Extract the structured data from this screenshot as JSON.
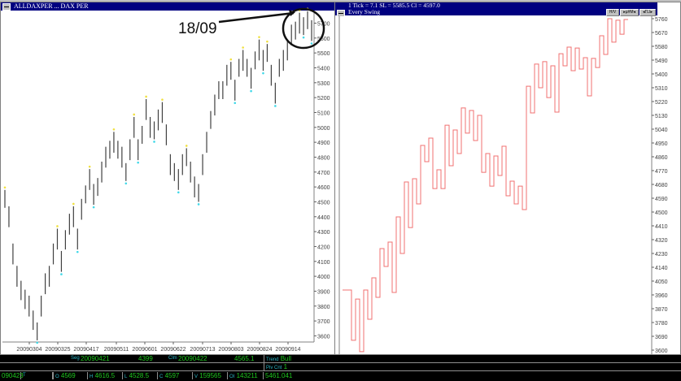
{
  "left_window": {
    "title": "ALLDAXPER ... DAX PER",
    "annotation": "18/09"
  },
  "right_window": {
    "info": "1 Tick = 7.1     SL = 5585.5     Cl = 4597.0",
    "subtitle": "Every Swing",
    "buttons": [
      "H/V",
      "▸µ#M◂",
      "◂ΓLI▸"
    ]
  },
  "chart_data": [
    {
      "type": "ohlc-bar",
      "ylim": [
        3550,
        5800
      ],
      "yticks": [
        3600,
        3700,
        3800,
        3900,
        4000,
        4100,
        4200,
        4300,
        4400,
        4500,
        4600,
        4700,
        4800,
        4900,
        5000,
        5100,
        5200,
        5300,
        5400,
        5500,
        5600,
        5700
      ],
      "xticks": [
        "20090304",
        "20090325",
        "20090417",
        "20090511",
        "20090601",
        "20090622",
        "20090713",
        "20090803",
        "20090824",
        "20090914"
      ],
      "grid": false,
      "colors": {
        "bar": "#404040",
        "swing_high": "#f0e040",
        "swing_low": "#40d8e8"
      },
      "bars_high_low": [
        [
          4580,
          4460
        ],
        [
          4470,
          4330
        ],
        [
          4220,
          4080
        ],
        [
          4070,
          3930
        ],
        [
          3970,
          3840
        ],
        [
          3910,
          3780
        ],
        [
          3870,
          3730
        ],
        [
          3770,
          3640
        ],
        [
          3690,
          3570
        ],
        [
          3870,
          3730
        ],
        [
          4020,
          3880
        ],
        [
          4070,
          3930
        ],
        [
          4220,
          4080
        ],
        [
          4320,
          4180
        ],
        [
          4170,
          4030
        ],
        [
          4310,
          4180
        ],
        [
          4420,
          4280
        ],
        [
          4470,
          4330
        ],
        [
          4320,
          4180
        ],
        [
          4520,
          4380
        ],
        [
          4610,
          4490
        ],
        [
          4720,
          4580
        ],
        [
          4620,
          4480
        ],
        [
          4660,
          4540
        ],
        [
          4770,
          4630
        ],
        [
          4870,
          4730
        ],
        [
          4910,
          4790
        ],
        [
          4970,
          4830
        ],
        [
          4910,
          4790
        ],
        [
          4870,
          4730
        ],
        [
          4760,
          4640
        ],
        [
          4920,
          4780
        ],
        [
          5070,
          4930
        ],
        [
          4920,
          4780
        ],
        [
          5010,
          4890
        ],
        [
          5190,
          5050
        ],
        [
          5070,
          4930
        ],
        [
          5040,
          4920
        ],
        [
          5120,
          4980
        ],
        [
          5170,
          5030
        ],
        [
          5020,
          4880
        ],
        [
          4820,
          4680
        ],
        [
          4760,
          4640
        ],
        [
          4720,
          4580
        ],
        [
          4820,
          4680
        ],
        [
          4860,
          4740
        ],
        [
          4770,
          4630
        ],
        [
          4670,
          4530
        ],
        [
          4620,
          4500
        ],
        [
          4820,
          4680
        ],
        [
          4970,
          4830
        ],
        [
          5110,
          4990
        ],
        [
          5220,
          5080
        ],
        [
          5310,
          5190
        ],
        [
          5310,
          5190
        ],
        [
          5420,
          5280
        ],
        [
          5440,
          5320
        ],
        [
          5320,
          5180
        ],
        [
          5460,
          5340
        ],
        [
          5520,
          5380
        ],
        [
          5460,
          5340
        ],
        [
          5400,
          5260
        ],
        [
          5510,
          5390
        ],
        [
          5590,
          5450
        ],
        [
          5520,
          5380
        ],
        [
          5560,
          5440
        ],
        [
          5420,
          5280
        ],
        [
          5300,
          5160
        ],
        [
          5460,
          5340
        ],
        [
          5520,
          5380
        ],
        [
          5590,
          5450
        ],
        [
          5690,
          5550
        ],
        [
          5710,
          5590
        ],
        [
          5770,
          5630
        ],
        [
          5740,
          5620
        ],
        [
          5780,
          5660
        ],
        [
          5720,
          5580
        ]
      ]
    },
    {
      "type": "swing-line",
      "ylim": [
        3570,
        5790
      ],
      "yticks": [
        3600,
        3690,
        3780,
        3870,
        3960,
        4050,
        4140,
        4230,
        4320,
        4410,
        4500,
        4590,
        4680,
        4770,
        4860,
        4950,
        5040,
        5130,
        5220,
        5310,
        5400,
        5490,
        5580,
        5670,
        5760
      ],
      "grid": false,
      "colors": {
        "line": "#f07070"
      },
      "swing_points": [
        3992,
        3664,
        3933,
        3590,
        3992,
        3801,
        4071,
        3944,
        4262,
        4145,
        4304,
        3976,
        4468,
        4230,
        4696,
        4399,
        4717,
        4553,
        4934,
        4828,
        4982,
        4653,
        4775,
        4653,
        5066,
        4802,
        5035,
        4881,
        5178,
        5014,
        5162,
        4966,
        5130,
        4759,
        4881,
        4669,
        4865,
        4738,
        4929,
        4606,
        4701,
        4553,
        4669,
        4516,
        5320,
        5146,
        5464,
        5310,
        5480,
        5246,
        5453,
        5151,
        5532,
        5453,
        5575,
        5421,
        5569,
        5432,
        5506,
        5257,
        5501,
        5442,
        5649,
        5527,
        5760,
        5607,
        5750,
        5659,
        5755,
        5585
      ]
    }
  ],
  "status_panel": {
    "row1": {
      "seg_label": "Seg",
      "seg_date": "20090421",
      "seg_value": "4399",
      "clm_label": "Clm",
      "clm_date": "20090422",
      "clm_value": "4565.1",
      "trend_label": "Trend",
      "trend_value": "Bull"
    },
    "row2": {
      "piv_label": "Piv Cnt",
      "piv_value": "1"
    },
    "row3": {
      "date": "090423",
      "t": "T",
      "o_label": "O",
      "o": "4569",
      "h_label": "H",
      "h": "4616.5",
      "l_label": "L",
      "l": "4528.5",
      "c_label": "C",
      "c": "4597",
      "v_label": "V",
      "v": "159565",
      "oi_label": "OI",
      "oi": "143211",
      "extra": "5461.041"
    }
  }
}
